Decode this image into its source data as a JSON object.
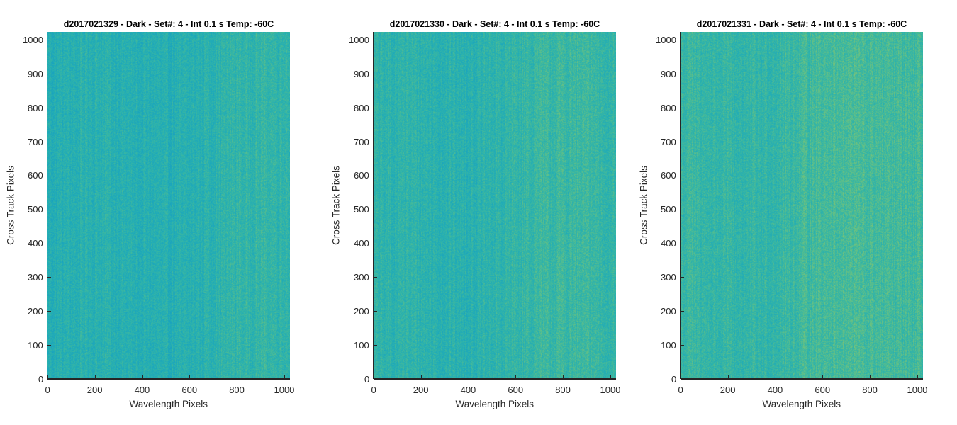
{
  "chart_data": [
    {
      "type": "heatmap",
      "title": "d2017021329 - Dark - Set#: 4 - Int 0.1 s Temp: -60C",
      "xlabel": "Wavelength Pixels",
      "ylabel": "Cross Track Pixels",
      "xlim": [
        0,
        1024
      ],
      "ylim": [
        0,
        1024
      ],
      "xticks": [
        "0",
        "200",
        "400",
        "600",
        "800",
        "1000"
      ],
      "yticks": [
        "0",
        "100",
        "200",
        "300",
        "400",
        "500",
        "600",
        "700",
        "800",
        "900",
        "1000"
      ],
      "colormap": "parula",
      "dominant_color": "#2cb4b4"
    },
    {
      "type": "heatmap",
      "title": "d2017021330 - Dark - Set#: 4 - Int 0.1 s Temp: -60C",
      "xlabel": "Wavelength Pixels",
      "ylabel": "Cross Track Pixels",
      "xlim": [
        0,
        1024
      ],
      "ylim": [
        0,
        1024
      ],
      "xticks": [
        "0",
        "200",
        "400",
        "600",
        "800",
        "1000"
      ],
      "yticks": [
        "0",
        "100",
        "200",
        "300",
        "400",
        "500",
        "600",
        "700",
        "800",
        "900",
        "1000"
      ],
      "colormap": "parula",
      "dominant_color": "#33b6ae"
    },
    {
      "type": "heatmap",
      "title": "d2017021331 - Dark - Set#: 4 - Int 0.1 s Temp: -60C",
      "xlabel": "Wavelength Pixels",
      "ylabel": "Cross Track Pixels",
      "xlim": [
        0,
        1024
      ],
      "ylim": [
        0,
        1024
      ],
      "xticks": [
        "0",
        "200",
        "400",
        "600",
        "800",
        "1000"
      ],
      "yticks": [
        "0",
        "100",
        "200",
        "300",
        "400",
        "500",
        "600",
        "700",
        "800",
        "900",
        "1000"
      ],
      "colormap": "parula",
      "dominant_color": "#48ba9c"
    }
  ]
}
